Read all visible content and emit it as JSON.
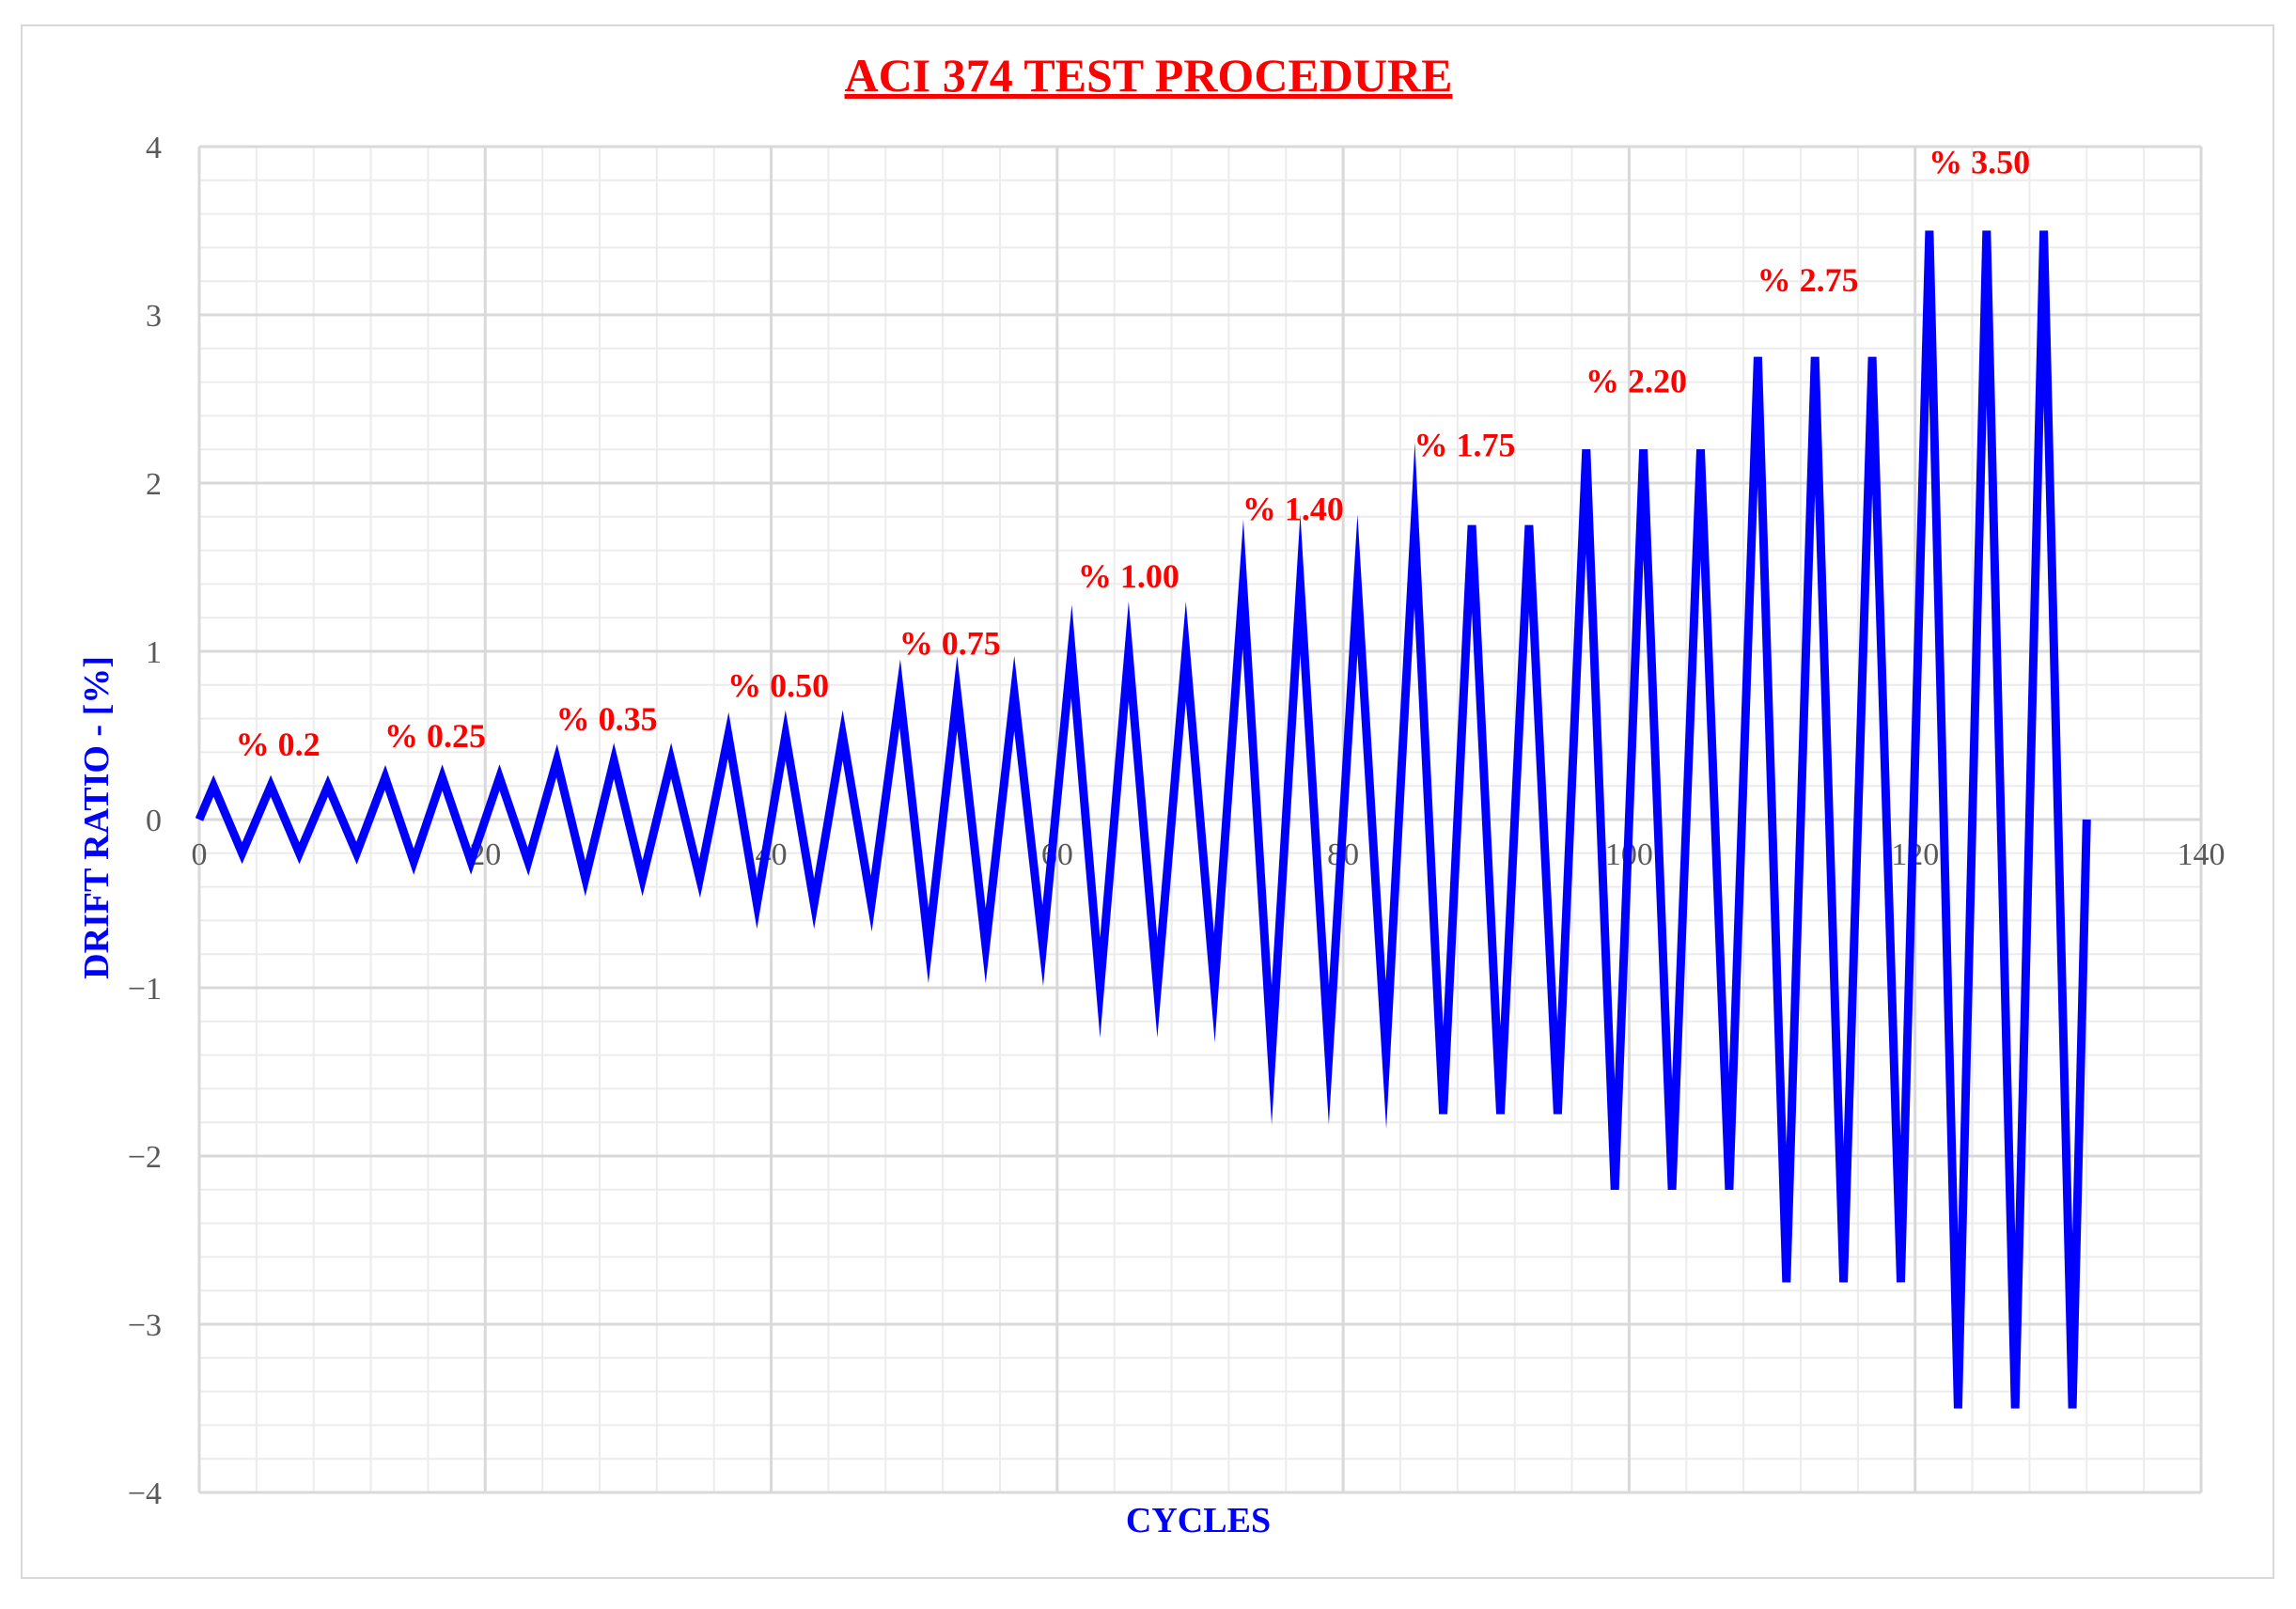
{
  "chart_data": {
    "type": "line",
    "title": "ACI 374 TEST PROCEDURE",
    "xlabel": "CYCLES",
    "ylabel": "DRIFT RATIO - [%]",
    "xlim": [
      0,
      140
    ],
    "ylim": [
      -4,
      4
    ],
    "x_ticks": [
      "0",
      "20",
      "40",
      "60",
      "80",
      "100",
      "120",
      "140"
    ],
    "y_ticks": [
      "4",
      "3",
      "2",
      "1",
      "0",
      "−1",
      "−2",
      "−3",
      "−4"
    ],
    "grid": true,
    "colors": {
      "title": "#ff0000",
      "line": "#0000ff",
      "axis_title": "#0000ff",
      "annotation": "#ff0000",
      "grid": "#d9d9d9"
    },
    "annotations": [
      {
        "text": "% 0.2",
        "x": 5.5,
        "y": 0.38
      },
      {
        "text": "% 0.25",
        "x": 16.5,
        "y": 0.43
      },
      {
        "text": "% 0.35",
        "x": 28.5,
        "y": 0.53
      },
      {
        "text": "% 0.50",
        "x": 40.5,
        "y": 0.73
      },
      {
        "text": "% 0.75",
        "x": 52.5,
        "y": 0.98
      },
      {
        "text": "% 1.00",
        "x": 65,
        "y": 1.38
      },
      {
        "text": "% 1.40",
        "x": 76.5,
        "y": 1.78
      },
      {
        "text": "% 1.75",
        "x": 88.5,
        "y": 2.16
      },
      {
        "text": "% 2.20",
        "x": 100.5,
        "y": 2.54
      },
      {
        "text": "% 2.75",
        "x": 112.5,
        "y": 3.14
      },
      {
        "text": "% 3.50",
        "x": 124.5,
        "y": 3.84
      }
    ],
    "series": [
      {
        "x": [
          0,
          1,
          3,
          5,
          7,
          9,
          11,
          13,
          15,
          17,
          19,
          21,
          23,
          25,
          27,
          29,
          31,
          33,
          35,
          37,
          39,
          41,
          43,
          45,
          47,
          49,
          51,
          53,
          55,
          57,
          59,
          61,
          63,
          65,
          67,
          69,
          71,
          73,
          75,
          77,
          79,
          81,
          83,
          85,
          87,
          89,
          91,
          93,
          95,
          97,
          99,
          101,
          103,
          105,
          107,
          109,
          111,
          113,
          115,
          117,
          119,
          121,
          123,
          125,
          127,
          129,
          131,
          132
        ],
        "y": [
          0,
          0.2,
          -0.2,
          0.2,
          -0.2,
          0.2,
          -0.2,
          0.25,
          -0.25,
          0.25,
          -0.25,
          0.25,
          -0.25,
          0.35,
          -0.35,
          0.35,
          -0.35,
          0.35,
          -0.35,
          0.5,
          -0.5,
          0.5,
          -0.5,
          0.5,
          -0.5,
          0.75,
          -0.75,
          0.75,
          -0.75,
          0.75,
          -0.75,
          1.0,
          -1.0,
          1.0,
          -1.0,
          1.0,
          -1.0,
          1.4,
          -1.4,
          1.4,
          -1.4,
          1.4,
          -1.4,
          1.75,
          -1.75,
          1.75,
          -1.75,
          1.75,
          -1.75,
          2.2,
          -2.2,
          2.2,
          -2.2,
          2.2,
          -2.2,
          2.75,
          -2.75,
          2.75,
          -2.75,
          2.75,
          -2.75,
          3.5,
          -3.5,
          3.5,
          -3.5,
          3.5,
          -3.5,
          0
        ]
      }
    ]
  }
}
